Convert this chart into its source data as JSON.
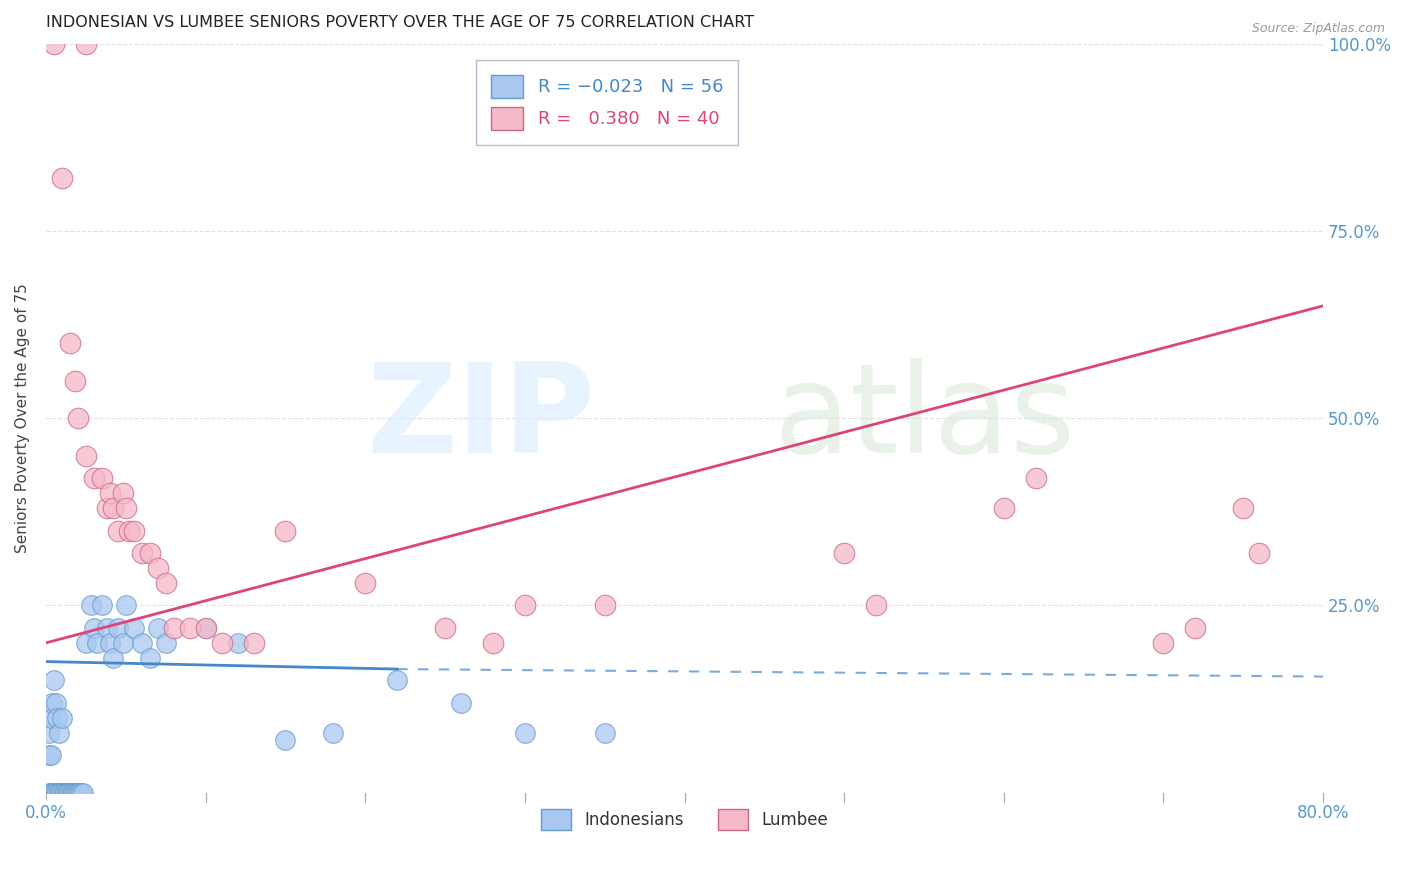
{
  "title": "INDONESIAN VS LUMBEE SENIORS POVERTY OVER THE AGE OF 75 CORRELATION CHART",
  "source": "Source: ZipAtlas.com",
  "ylabel": "Seniors Poverty Over the Age of 75",
  "xlim": [
    0.0,
    0.8
  ],
  "ylim": [
    0.0,
    1.0
  ],
  "xticks": [
    0.0,
    0.1,
    0.2,
    0.3,
    0.4,
    0.5,
    0.6,
    0.7,
    0.8
  ],
  "yticks": [
    0.0,
    0.25,
    0.5,
    0.75,
    1.0
  ],
  "indonesian_color": "#a8c8f0",
  "lumbee_color": "#f5b8c8",
  "indonesian_edge": "#6699cc",
  "lumbee_edge": "#cc6688",
  "trend_indonesian_color": "#4488cc",
  "trend_lumbee_color": "#dd4477",
  "R_indonesian": -0.023,
  "N_indonesian": 56,
  "R_lumbee": 0.38,
  "N_lumbee": 40,
  "background_color": "#ffffff",
  "grid_color": "#e0e0e8",
  "indonesian_points": [
    [
      0.002,
      0.0
    ],
    [
      0.003,
      0.0
    ],
    [
      0.004,
      0.0
    ],
    [
      0.005,
      0.0
    ],
    [
      0.006,
      0.0
    ],
    [
      0.007,
      0.0
    ],
    [
      0.008,
      0.0
    ],
    [
      0.009,
      0.0
    ],
    [
      0.01,
      0.0
    ],
    [
      0.011,
      0.0
    ],
    [
      0.012,
      0.0
    ],
    [
      0.013,
      0.0
    ],
    [
      0.014,
      0.0
    ],
    [
      0.015,
      0.0
    ],
    [
      0.016,
      0.0
    ],
    [
      0.017,
      0.0
    ],
    [
      0.018,
      0.0
    ],
    [
      0.019,
      0.0
    ],
    [
      0.02,
      0.0
    ],
    [
      0.021,
      0.0
    ],
    [
      0.022,
      0.0
    ],
    [
      0.023,
      0.0
    ],
    [
      0.002,
      0.05
    ],
    [
      0.003,
      0.05
    ],
    [
      0.025,
      0.2
    ],
    [
      0.028,
      0.25
    ],
    [
      0.03,
      0.22
    ],
    [
      0.032,
      0.2
    ],
    [
      0.035,
      0.25
    ],
    [
      0.038,
      0.22
    ],
    [
      0.04,
      0.2
    ],
    [
      0.042,
      0.18
    ],
    [
      0.045,
      0.22
    ],
    [
      0.048,
      0.2
    ],
    [
      0.05,
      0.25
    ],
    [
      0.055,
      0.22
    ],
    [
      0.06,
      0.2
    ],
    [
      0.065,
      0.18
    ],
    [
      0.07,
      0.22
    ],
    [
      0.075,
      0.2
    ],
    [
      0.1,
      0.22
    ],
    [
      0.12,
      0.2
    ],
    [
      0.15,
      0.07
    ],
    [
      0.18,
      0.08
    ],
    [
      0.22,
      0.15
    ],
    [
      0.26,
      0.12
    ],
    [
      0.3,
      0.08
    ],
    [
      0.35,
      0.08
    ],
    [
      0.002,
      0.08
    ],
    [
      0.003,
      0.1
    ],
    [
      0.004,
      0.12
    ],
    [
      0.005,
      0.15
    ],
    [
      0.006,
      0.12
    ],
    [
      0.007,
      0.1
    ],
    [
      0.008,
      0.08
    ],
    [
      0.01,
      0.1
    ]
  ],
  "lumbee_points": [
    [
      0.005,
      1.0
    ],
    [
      0.025,
      1.0
    ],
    [
      0.01,
      0.82
    ],
    [
      0.015,
      0.6
    ],
    [
      0.018,
      0.55
    ],
    [
      0.02,
      0.5
    ],
    [
      0.025,
      0.45
    ],
    [
      0.03,
      0.42
    ],
    [
      0.035,
      0.42
    ],
    [
      0.038,
      0.38
    ],
    [
      0.04,
      0.4
    ],
    [
      0.042,
      0.38
    ],
    [
      0.045,
      0.35
    ],
    [
      0.048,
      0.4
    ],
    [
      0.05,
      0.38
    ],
    [
      0.052,
      0.35
    ],
    [
      0.055,
      0.35
    ],
    [
      0.06,
      0.32
    ],
    [
      0.065,
      0.32
    ],
    [
      0.07,
      0.3
    ],
    [
      0.075,
      0.28
    ],
    [
      0.08,
      0.22
    ],
    [
      0.09,
      0.22
    ],
    [
      0.1,
      0.22
    ],
    [
      0.11,
      0.2
    ],
    [
      0.13,
      0.2
    ],
    [
      0.15,
      0.35
    ],
    [
      0.2,
      0.28
    ],
    [
      0.25,
      0.22
    ],
    [
      0.28,
      0.2
    ],
    [
      0.3,
      0.25
    ],
    [
      0.35,
      0.25
    ],
    [
      0.5,
      0.32
    ],
    [
      0.52,
      0.25
    ],
    [
      0.6,
      0.38
    ],
    [
      0.62,
      0.42
    ],
    [
      0.7,
      0.2
    ],
    [
      0.72,
      0.22
    ],
    [
      0.75,
      0.38
    ],
    [
      0.76,
      0.32
    ]
  ],
  "trend_lum_x0": 0.0,
  "trend_lum_y0": 0.2,
  "trend_lum_x1": 0.8,
  "trend_lum_y1": 0.65,
  "trend_ind_x0": 0.0,
  "trend_ind_y0": 0.175,
  "trend_ind_x1": 0.22,
  "trend_ind_y1": 0.165,
  "trend_ind_dash_x0": 0.22,
  "trend_ind_dash_y0": 0.165,
  "trend_ind_dash_x1": 0.8,
  "trend_ind_dash_y1": 0.155
}
